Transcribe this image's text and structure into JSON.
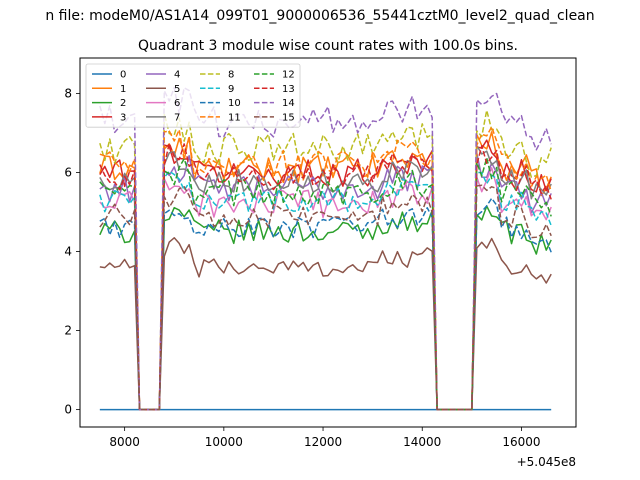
{
  "chart_data": {
    "type": "line",
    "suptitle": "n file: modeM0/AS1A14_099T01_9000006536_55441cztM0_level2_quad_clean",
    "title": "Quadrant 3 module wise count rates with 100.0s bins.",
    "xlabel": "",
    "ylabel": "",
    "xlim": [
      7100,
      17100
    ],
    "ylim": [
      -0.44,
      8.9
    ],
    "x_offset_label": "+5.045e8",
    "xticks": [
      8000,
      10000,
      12000,
      14000,
      16000
    ],
    "xtick_labels": [
      "8000",
      "10000",
      "12000",
      "14000",
      "16000"
    ],
    "yticks": [
      0,
      2,
      4,
      6,
      8
    ],
    "ytick_labels": [
      "0",
      "2",
      "4",
      "6",
      "8"
    ],
    "grid": false,
    "legend_position": "top-left",
    "legend_columns": 4,
    "time_range": [
      7500,
      16600
    ],
    "time_step": 100,
    "active_intervals": [
      [
        7500,
        8200
      ],
      [
        8800,
        14200
      ],
      [
        15100,
        16600
      ]
    ],
    "series": [
      {
        "name": "0",
        "color": "#1f77b4",
        "dashed": false,
        "level": 0.0,
        "amplitude": 0.0
      },
      {
        "name": "1",
        "color": "#ff7f0e",
        "dashed": false,
        "level": 6.1,
        "amplitude": 0.35
      },
      {
        "name": "2",
        "color": "#2ca02c",
        "dashed": false,
        "level": 4.5,
        "amplitude": 0.3
      },
      {
        "name": "3",
        "color": "#d62728",
        "dashed": false,
        "level": 6.0,
        "amplitude": 0.35
      },
      {
        "name": "4",
        "color": "#9467bd",
        "dashed": false,
        "level": 5.6,
        "amplitude": 0.35
      },
      {
        "name": "5",
        "color": "#8c564b",
        "dashed": false,
        "level": 3.6,
        "amplitude": 0.25
      },
      {
        "name": "6",
        "color": "#e377c2",
        "dashed": false,
        "level": 5.2,
        "amplitude": 0.35
      },
      {
        "name": "7",
        "color": "#7f7f7f",
        "dashed": false,
        "level": 5.8,
        "amplitude": 0.3
      },
      {
        "name": "8",
        "color": "#bcbd22",
        "dashed": true,
        "level": 6.6,
        "amplitude": 0.4
      },
      {
        "name": "9",
        "color": "#17becf",
        "dashed": true,
        "level": 5.3,
        "amplitude": 0.3
      },
      {
        "name": "10",
        "color": "#1f77b4",
        "dashed": true,
        "level": 4.6,
        "amplitude": 0.3
      },
      {
        "name": "11",
        "color": "#ff7f0e",
        "dashed": true,
        "level": 6.2,
        "amplitude": 0.4
      },
      {
        "name": "12",
        "color": "#2ca02c",
        "dashed": true,
        "level": 5.5,
        "amplitude": 0.35
      },
      {
        "name": "13",
        "color": "#d62728",
        "dashed": true,
        "level": 5.9,
        "amplitude": 0.35
      },
      {
        "name": "14",
        "color": "#9467bd",
        "dashed": true,
        "level": 7.3,
        "amplitude": 0.4
      },
      {
        "name": "15",
        "color": "#8c564b",
        "dashed": true,
        "level": 4.9,
        "amplitude": 0.3
      }
    ]
  }
}
